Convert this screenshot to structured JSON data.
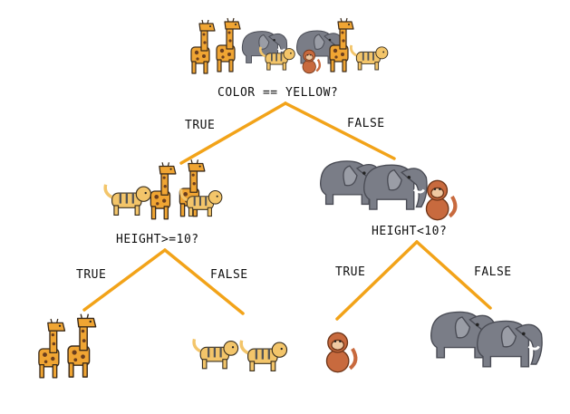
{
  "tree": {
    "root_question": "COLOR == YELLOW?",
    "root_true": "TRUE",
    "root_false": "FALSE",
    "left_question": "HEIGHT>=10?",
    "left_true": "TRUE",
    "left_false": "FALSE",
    "right_question": "HEIGHT<10?",
    "right_true": "TRUE",
    "right_false": "FALSE"
  },
  "colors": {
    "branch": "#F2A319",
    "giraffe": "#F0A533",
    "giraffe_spot": "#6B3E1E",
    "elephant": "#7A7D87",
    "tiger": "#F3C56A",
    "tiger_stripe": "#555555",
    "monkey": "#C86A3E"
  },
  "icons": [
    "giraffe-icon",
    "elephant-icon",
    "tiger-icon",
    "monkey-icon"
  ]
}
